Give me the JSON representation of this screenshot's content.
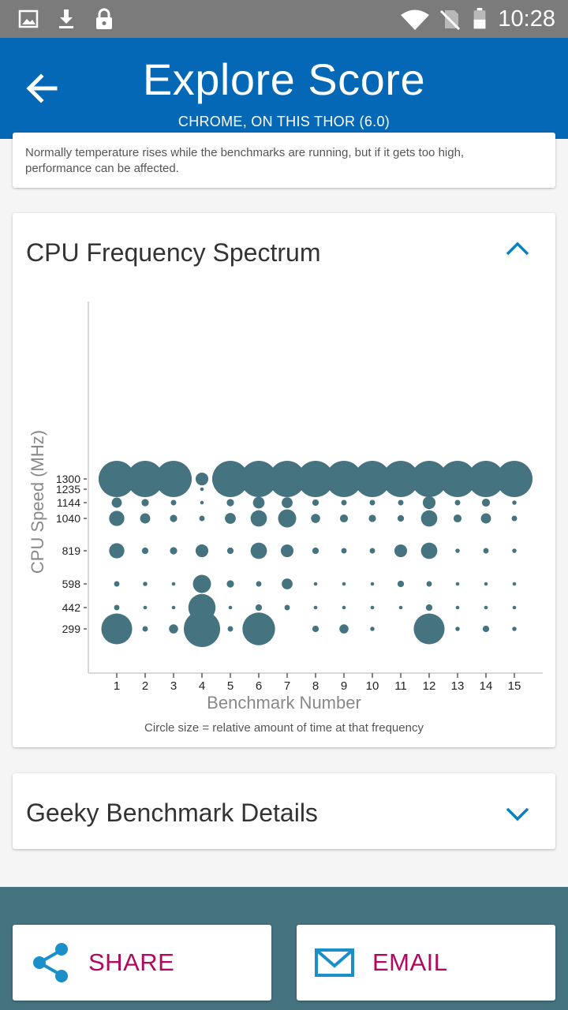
{
  "status_bar": {
    "time": "10:28",
    "icons": [
      "image-icon",
      "download-icon",
      "lock-icon",
      "wifi-icon",
      "no-sim-icon",
      "battery-icon"
    ]
  },
  "header": {
    "title": "Explore Score",
    "subtitle": "CHROME, ON THIS THOR (6.0)"
  },
  "temperature_card": {
    "note": "Normally temperature rises while the benchmarks are running, but if it gets too high, performance can be affected."
  },
  "cpu_card": {
    "title": "CPU Frequency Spectrum",
    "expanded": true,
    "caption": "Circle size = relative amount of time at that frequency"
  },
  "geeky_card": {
    "title": "Geeky Benchmark Details",
    "expanded": false
  },
  "actions": {
    "share_label": "SHARE",
    "email_label": "EMAIL"
  },
  "colors": {
    "status_bar": "#7b7b7b",
    "app_bar": "#0468b6",
    "bubble": "#467380",
    "accent_text": "#b0095f",
    "icon_blue": "#1a8fc9"
  },
  "chart_data": {
    "type": "scatter",
    "title": "CPU Frequency Spectrum",
    "xlabel": "Benchmark Number",
    "ylabel": "CPU Speed (MHz)",
    "note": "bubble chart; r = relative amount of time at that frequency (0-1 scale)",
    "x_categories": [
      1,
      2,
      3,
      4,
      5,
      6,
      7,
      8,
      9,
      10,
      11,
      12,
      13,
      14,
      15
    ],
    "y_ticks": [
      299,
      442,
      598,
      819,
      1040,
      1144,
      1235,
      1300
    ],
    "grid": false,
    "caption": "Circle size = relative amount of time at that frequency",
    "series": [
      {
        "x": 1,
        "y": 1300,
        "r": 1.0
      },
      {
        "x": 1,
        "y": 1144,
        "r": 0.28
      },
      {
        "x": 1,
        "y": 1040,
        "r": 0.42
      },
      {
        "x": 1,
        "y": 819,
        "r": 0.42
      },
      {
        "x": 1,
        "y": 598,
        "r": 0.15
      },
      {
        "x": 1,
        "y": 442,
        "r": 0.15
      },
      {
        "x": 1,
        "y": 299,
        "r": 0.85
      },
      {
        "x": 2,
        "y": 1300,
        "r": 1.0
      },
      {
        "x": 2,
        "y": 1144,
        "r": 0.2
      },
      {
        "x": 2,
        "y": 1040,
        "r": 0.28
      },
      {
        "x": 2,
        "y": 819,
        "r": 0.18
      },
      {
        "x": 2,
        "y": 598,
        "r": 0.12
      },
      {
        "x": 2,
        "y": 442,
        "r": 0.1
      },
      {
        "x": 2,
        "y": 299,
        "r": 0.15
      },
      {
        "x": 3,
        "y": 1300,
        "r": 1.0
      },
      {
        "x": 3,
        "y": 1144,
        "r": 0.15
      },
      {
        "x": 3,
        "y": 1040,
        "r": 0.2
      },
      {
        "x": 3,
        "y": 819,
        "r": 0.2
      },
      {
        "x": 3,
        "y": 598,
        "r": 0.1
      },
      {
        "x": 3,
        "y": 442,
        "r": 0.1
      },
      {
        "x": 3,
        "y": 299,
        "r": 0.25
      },
      {
        "x": 4,
        "y": 1300,
        "r": 0.35
      },
      {
        "x": 4,
        "y": 1235,
        "r": 0.1
      },
      {
        "x": 4,
        "y": 1144,
        "r": 0.1
      },
      {
        "x": 4,
        "y": 1040,
        "r": 0.15
      },
      {
        "x": 4,
        "y": 819,
        "r": 0.35
      },
      {
        "x": 4,
        "y": 598,
        "r": 0.5
      },
      {
        "x": 4,
        "y": 442,
        "r": 0.75
      },
      {
        "x": 4,
        "y": 299,
        "r": 1.0
      },
      {
        "x": 5,
        "y": 1300,
        "r": 1.0
      },
      {
        "x": 5,
        "y": 1144,
        "r": 0.2
      },
      {
        "x": 5,
        "y": 1040,
        "r": 0.3
      },
      {
        "x": 5,
        "y": 819,
        "r": 0.18
      },
      {
        "x": 5,
        "y": 598,
        "r": 0.2
      },
      {
        "x": 5,
        "y": 442,
        "r": 0.1
      },
      {
        "x": 5,
        "y": 299,
        "r": 0.15
      },
      {
        "x": 6,
        "y": 1300,
        "r": 1.0
      },
      {
        "x": 6,
        "y": 1144,
        "r": 0.32
      },
      {
        "x": 6,
        "y": 1040,
        "r": 0.45
      },
      {
        "x": 6,
        "y": 819,
        "r": 0.45
      },
      {
        "x": 6,
        "y": 598,
        "r": 0.15
      },
      {
        "x": 6,
        "y": 442,
        "r": 0.18
      },
      {
        "x": 6,
        "y": 299,
        "r": 0.9
      },
      {
        "x": 7,
        "y": 1300,
        "r": 1.0
      },
      {
        "x": 7,
        "y": 1144,
        "r": 0.3
      },
      {
        "x": 7,
        "y": 1040,
        "r": 0.5
      },
      {
        "x": 7,
        "y": 819,
        "r": 0.35
      },
      {
        "x": 7,
        "y": 598,
        "r": 0.3
      },
      {
        "x": 7,
        "y": 442,
        "r": 0.15
      },
      {
        "x": 8,
        "y": 1300,
        "r": 1.0
      },
      {
        "x": 8,
        "y": 1144,
        "r": 0.18
      },
      {
        "x": 8,
        "y": 1040,
        "r": 0.25
      },
      {
        "x": 8,
        "y": 819,
        "r": 0.18
      },
      {
        "x": 8,
        "y": 598,
        "r": 0.1
      },
      {
        "x": 8,
        "y": 442,
        "r": 0.1
      },
      {
        "x": 8,
        "y": 299,
        "r": 0.18
      },
      {
        "x": 9,
        "y": 1300,
        "r": 1.0
      },
      {
        "x": 9,
        "y": 1144,
        "r": 0.15
      },
      {
        "x": 9,
        "y": 1040,
        "r": 0.22
      },
      {
        "x": 9,
        "y": 819,
        "r": 0.15
      },
      {
        "x": 9,
        "y": 598,
        "r": 0.1
      },
      {
        "x": 9,
        "y": 442,
        "r": 0.1
      },
      {
        "x": 9,
        "y": 299,
        "r": 0.25
      },
      {
        "x": 10,
        "y": 1300,
        "r": 1.0
      },
      {
        "x": 10,
        "y": 1144,
        "r": 0.15
      },
      {
        "x": 10,
        "y": 1040,
        "r": 0.2
      },
      {
        "x": 10,
        "y": 819,
        "r": 0.15
      },
      {
        "x": 10,
        "y": 598,
        "r": 0.1
      },
      {
        "x": 10,
        "y": 442,
        "r": 0.1
      },
      {
        "x": 10,
        "y": 299,
        "r": 0.12
      },
      {
        "x": 11,
        "y": 1300,
        "r": 1.0
      },
      {
        "x": 11,
        "y": 1144,
        "r": 0.15
      },
      {
        "x": 11,
        "y": 1040,
        "r": 0.18
      },
      {
        "x": 11,
        "y": 819,
        "r": 0.35
      },
      {
        "x": 11,
        "y": 598,
        "r": 0.18
      },
      {
        "x": 11,
        "y": 442,
        "r": 0.1
      },
      {
        "x": 12,
        "y": 1300,
        "r": 1.0
      },
      {
        "x": 12,
        "y": 1144,
        "r": 0.35
      },
      {
        "x": 12,
        "y": 1040,
        "r": 0.45
      },
      {
        "x": 12,
        "y": 819,
        "r": 0.45
      },
      {
        "x": 12,
        "y": 598,
        "r": 0.15
      },
      {
        "x": 12,
        "y": 442,
        "r": 0.18
      },
      {
        "x": 12,
        "y": 299,
        "r": 0.85
      },
      {
        "x": 13,
        "y": 1300,
        "r": 1.0
      },
      {
        "x": 13,
        "y": 1144,
        "r": 0.15
      },
      {
        "x": 13,
        "y": 1040,
        "r": 0.22
      },
      {
        "x": 13,
        "y": 819,
        "r": 0.12
      },
      {
        "x": 13,
        "y": 598,
        "r": 0.1
      },
      {
        "x": 13,
        "y": 442,
        "r": 0.1
      },
      {
        "x": 13,
        "y": 299,
        "r": 0.12
      },
      {
        "x": 14,
        "y": 1300,
        "r": 1.0
      },
      {
        "x": 14,
        "y": 1144,
        "r": 0.22
      },
      {
        "x": 14,
        "y": 1040,
        "r": 0.28
      },
      {
        "x": 14,
        "y": 819,
        "r": 0.15
      },
      {
        "x": 14,
        "y": 598,
        "r": 0.1
      },
      {
        "x": 14,
        "y": 442,
        "r": 0.1
      },
      {
        "x": 14,
        "y": 299,
        "r": 0.18
      },
      {
        "x": 15,
        "y": 1300,
        "r": 1.0
      },
      {
        "x": 15,
        "y": 1144,
        "r": 0.12
      },
      {
        "x": 15,
        "y": 1040,
        "r": 0.15
      },
      {
        "x": 15,
        "y": 819,
        "r": 0.12
      },
      {
        "x": 15,
        "y": 598,
        "r": 0.1
      },
      {
        "x": 15,
        "y": 442,
        "r": 0.1
      },
      {
        "x": 15,
        "y": 299,
        "r": 0.12
      }
    ]
  }
}
